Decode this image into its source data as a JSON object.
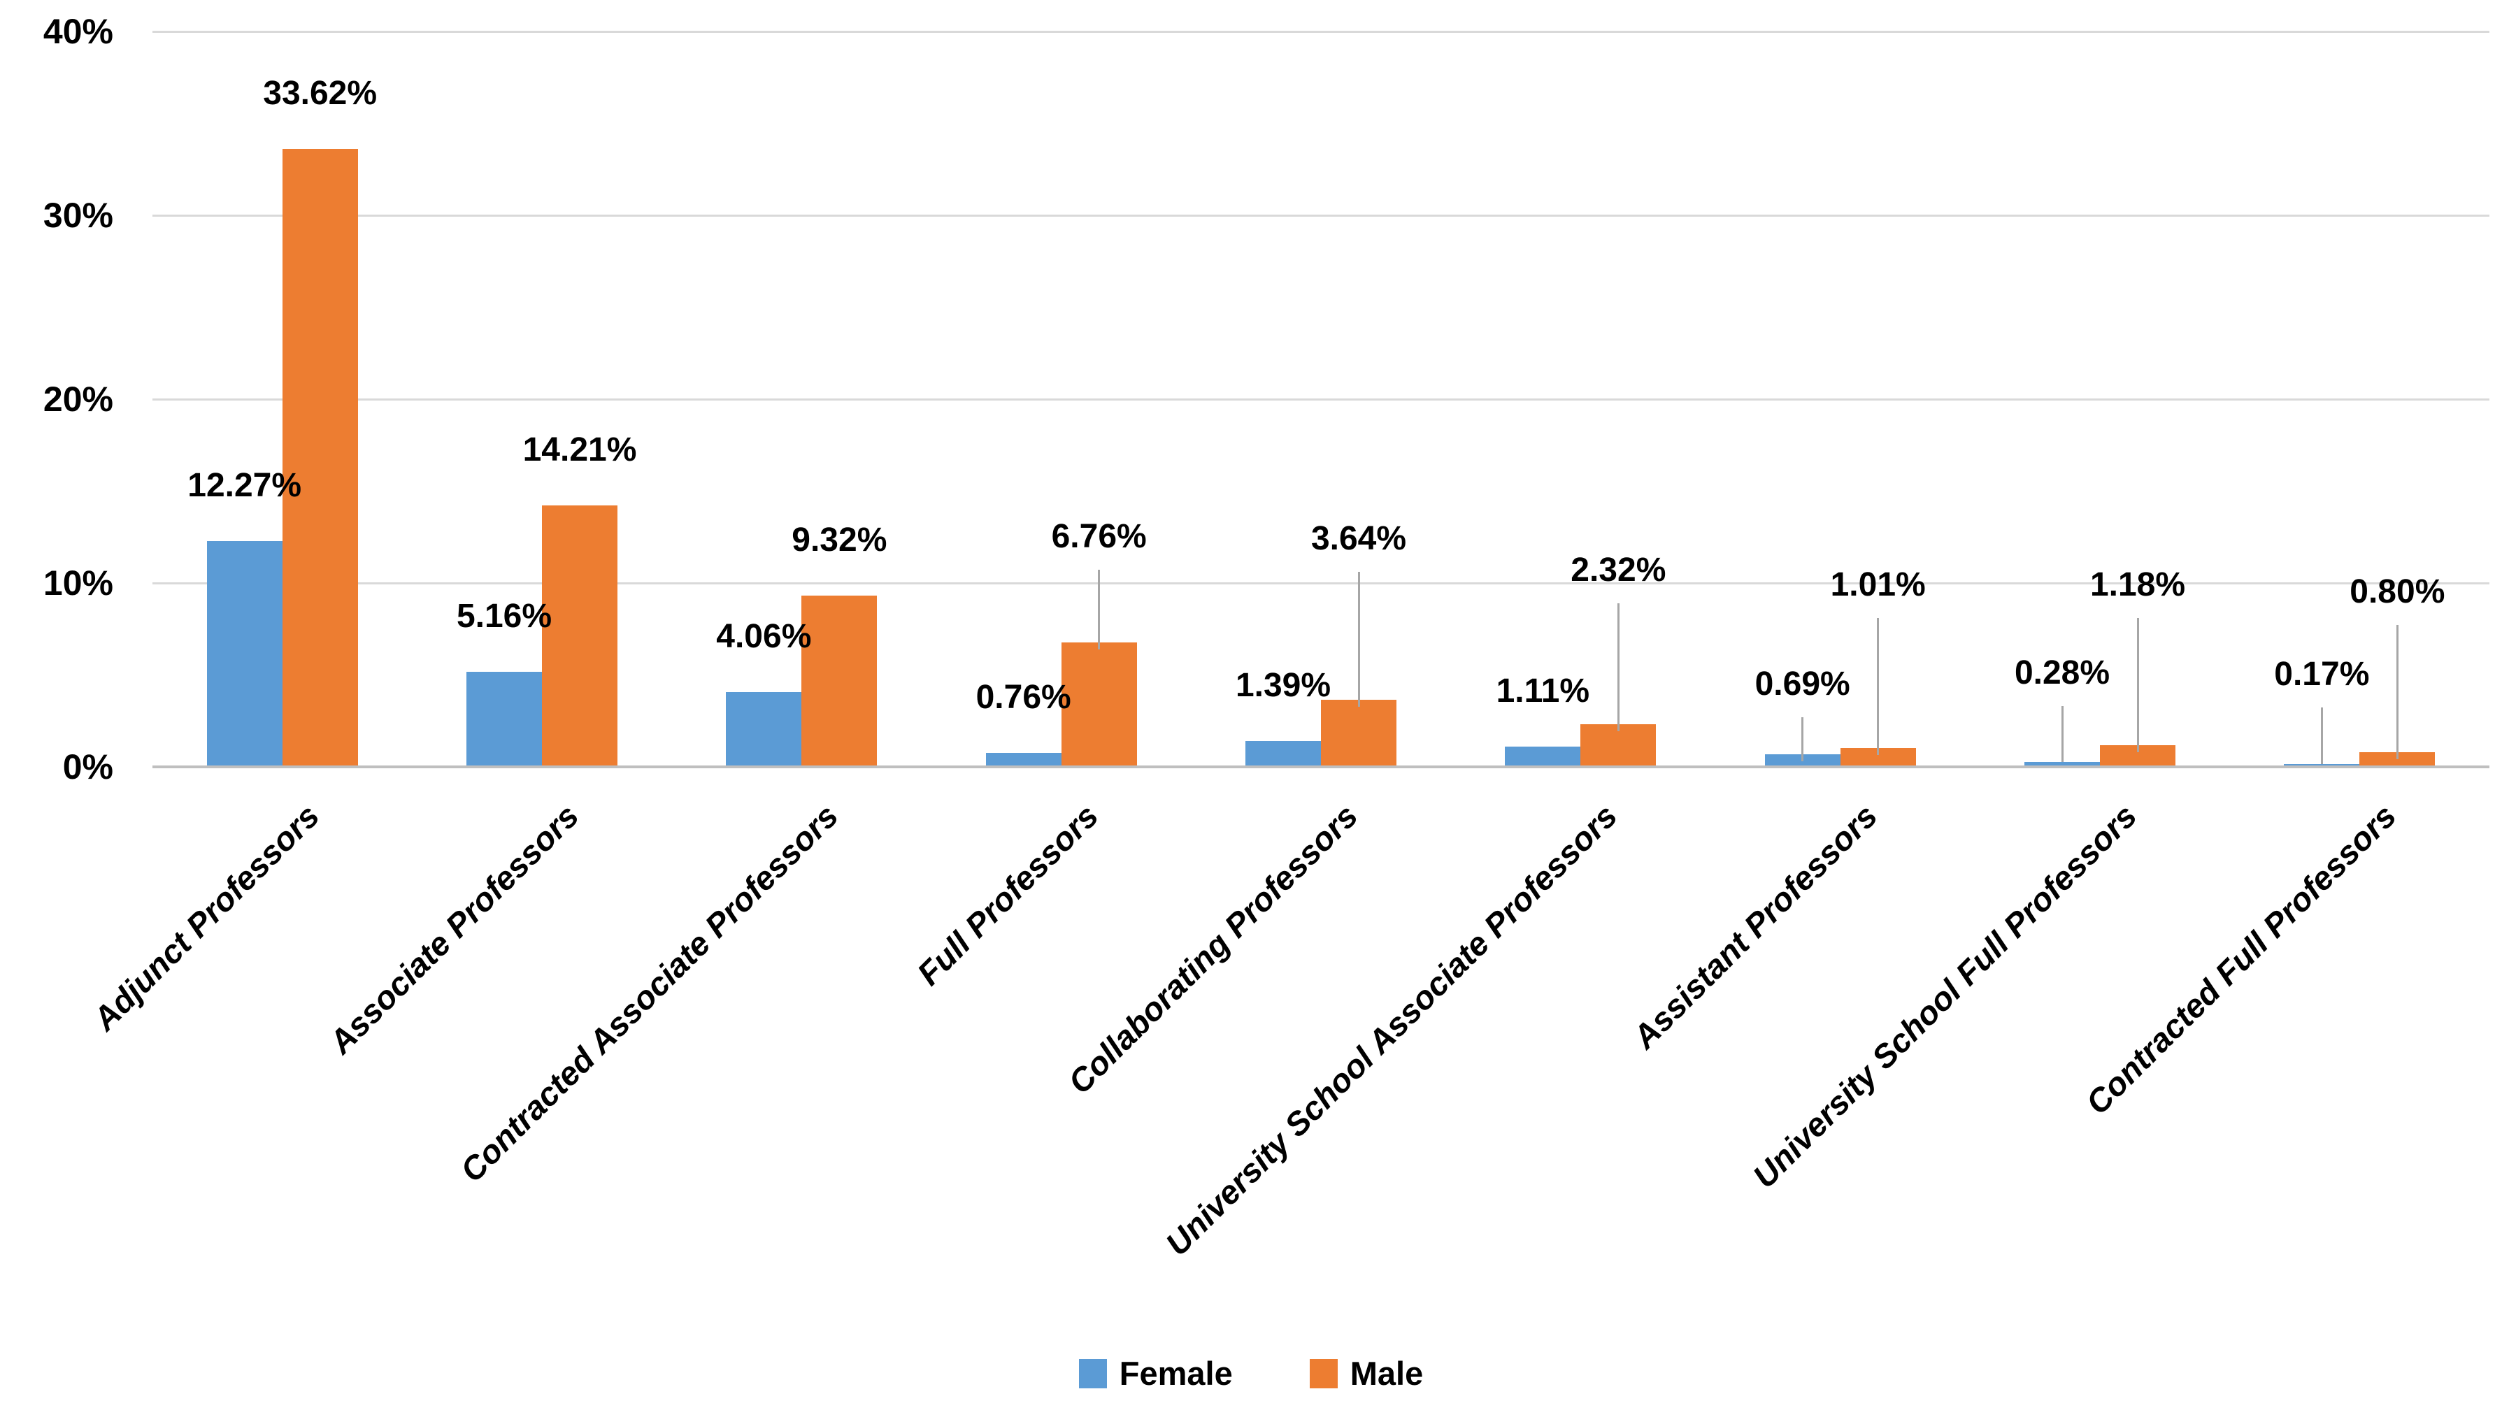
{
  "chart_data": {
    "type": "bar",
    "title": "",
    "categories": [
      "Adjunct Professors",
      "Associate Professors",
      "Contracted Associate Professors",
      "Full Professors",
      "Collaborating Professors",
      "University School Associate Professors",
      "Assistant Professors",
      "University School Full Professors",
      "Contracted Full Professors"
    ],
    "series": [
      {
        "name": "Female",
        "color": "#5B9BD5",
        "values": [
          12.27,
          5.16,
          4.06,
          0.76,
          1.39,
          1.11,
          0.69,
          0.28,
          0.17
        ],
        "labels": [
          "12.27%",
          "5.16%",
          "4.06%",
          "0.76%",
          "1.39%",
          "1.11%",
          "0.69%",
          "0.28%",
          "0.17%"
        ],
        "label_anchor_pct": [
          null,
          null,
          null,
          null,
          null,
          null,
          3.4,
          4.0,
          3.9
        ]
      },
      {
        "name": "Male",
        "color": "#ED7D31",
        "values": [
          33.62,
          14.21,
          9.32,
          6.76,
          3.64,
          2.32,
          1.01,
          1.18,
          0.8
        ],
        "labels": [
          "33.62%",
          "14.21%",
          "9.32%",
          "6.76%",
          "3.64%",
          "2.32%",
          "1.01%",
          "1.18%",
          "0.80%"
        ],
        "label_anchor_pct": [
          null,
          null,
          null,
          11.4,
          11.3,
          9.6,
          8.8,
          8.8,
          8.4
        ]
      }
    ],
    "y_axis": {
      "tick_labels": [
        "0%",
        "10%",
        "20%",
        "30%",
        "40%"
      ],
      "tick_values": [
        0,
        10,
        20,
        30,
        40
      ],
      "min": 0,
      "max": 40,
      "grid": true
    },
    "legend": {
      "position": "bottom-center",
      "entries": [
        "Female",
        "Male"
      ]
    },
    "colors": {
      "female": "#5B9BD5",
      "male": "#ED7D31",
      "gridline": "#D9D9D9",
      "axis_line": "#BFBFBF",
      "leader_line": "#A6A6A6",
      "label_text": "#000000",
      "background": "#FFFFFF"
    }
  }
}
